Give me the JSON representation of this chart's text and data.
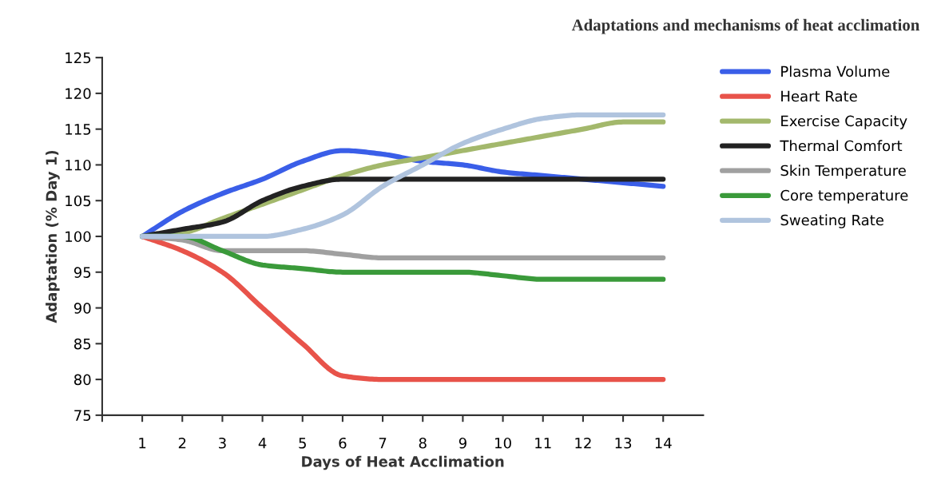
{
  "chart_data": {
    "type": "line",
    "title": "Adaptations and mechanisms of heat acclimation",
    "xlabel": "Days of Heat Acclimation",
    "ylabel": "Adaptation (% Day 1)",
    "x": [
      1,
      2,
      3,
      4,
      5,
      6,
      7,
      8,
      9,
      10,
      11,
      12,
      13,
      14
    ],
    "xlim": [
      0,
      15
    ],
    "xticks": [
      {
        "value": 0,
        "label": null
      },
      1,
      2,
      3,
      4,
      5,
      6,
      7,
      8,
      9,
      10,
      11,
      12,
      13,
      14
    ],
    "ylim": [
      75,
      125
    ],
    "yticks": [
      75,
      80,
      85,
      90,
      95,
      100,
      105,
      110,
      115,
      120,
      125
    ],
    "grid": false,
    "legend": "right",
    "marker": "none",
    "line_style": "solid",
    "series": [
      {
        "name": "Plasma Volume",
        "color": "#3a5ee8",
        "values": [
          100,
          103.5,
          106,
          108,
          110.5,
          112,
          111.5,
          110.5,
          110,
          109,
          108.5,
          108,
          107.5,
          107
        ]
      },
      {
        "name": "Heart Rate",
        "color": "#e8534a",
        "values": [
          100,
          98,
          95,
          90,
          85,
          80.5,
          80,
          80,
          80,
          80,
          80,
          80,
          80,
          80
        ]
      },
      {
        "name": "Exercise Capacity",
        "color": "#a3b86c",
        "values": [
          100,
          100.5,
          102.5,
          104.5,
          106.5,
          108.5,
          110,
          111,
          112,
          113,
          114,
          115,
          116,
          116
        ]
      },
      {
        "name": "Thermal Comfort",
        "color": "#222222",
        "values": [
          100,
          101,
          102,
          105,
          107,
          108,
          108,
          108,
          108,
          108,
          108,
          108,
          108,
          108
        ]
      },
      {
        "name": "Skin Temperature",
        "color": "#a0a0a0",
        "values": [
          100,
          99.5,
          98,
          98,
          98,
          97.5,
          97,
          97,
          97,
          97,
          97,
          97,
          97,
          97
        ]
      },
      {
        "name": "Core temperature",
        "color": "#3a9a3a",
        "values": [
          100,
          100,
          98,
          96,
          95.5,
          95,
          95,
          95,
          95,
          94.5,
          94,
          94,
          94,
          94
        ]
      },
      {
        "name": "Sweating Rate",
        "color": "#b0c4de",
        "values": [
          100,
          100,
          100,
          100,
          101,
          103,
          107,
          110,
          113,
          115,
          116.5,
          117,
          117,
          117
        ]
      }
    ]
  }
}
